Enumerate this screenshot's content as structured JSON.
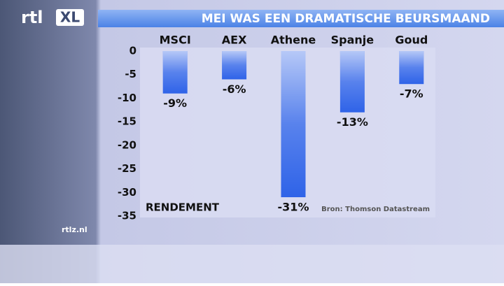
{
  "chart_data": {
    "type": "bar",
    "title": "MEI WAS EEN DRAMATISCHE BEURSMAAND",
    "categories": [
      "MSCI",
      "AEX",
      "Athene",
      "Spanje",
      "Goud"
    ],
    "values": [
      -9,
      -6,
      -31,
      -13,
      -7
    ],
    "value_labels": [
      "-9%",
      "-6%",
      "-31%",
      "-13%",
      "-7%"
    ],
    "color": "#2f63e8",
    "ylim": [
      -35,
      0
    ],
    "yticks": [
      0,
      -5,
      -10,
      -15,
      -20,
      -25,
      -30,
      -35
    ],
    "annotations": [
      "RENDEMENT",
      "Bron: Thomson Datastream"
    ]
  },
  "logo": {
    "rtl": "rtl",
    "xl": "XL"
  },
  "website": "rtlz.nl"
}
